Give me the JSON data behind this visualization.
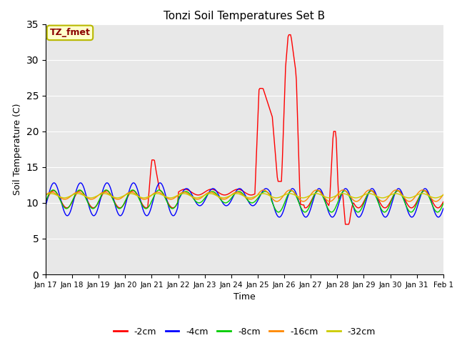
{
  "title": "Tonzi Soil Temperatures Set B",
  "xlabel": "Time",
  "ylabel": "Soil Temperature (C)",
  "ylim": [
    0,
    35
  ],
  "yticks": [
    0,
    5,
    10,
    15,
    20,
    25,
    30,
    35
  ],
  "background_color": "#e8e8e8",
  "annotation_text": "TZ_fmet",
  "annotation_color": "#8b0000",
  "annotation_bg": "#ffffcc",
  "annotation_border": "#b8b800",
  "series": {
    "-2cm": {
      "color": "#ff0000",
      "linewidth": 1.0
    },
    "-4cm": {
      "color": "#0000ff",
      "linewidth": 1.0
    },
    "-8cm": {
      "color": "#00cc00",
      "linewidth": 1.0
    },
    "-16cm": {
      "color": "#ff8800",
      "linewidth": 1.0
    },
    "-32cm": {
      "color": "#cccc00",
      "linewidth": 1.0
    }
  },
  "x_labels": [
    "Jan 17",
    "Jan 18",
    "Jan 19",
    "Jan 20",
    "Jan 21",
    "Jan 22",
    "Jan 23",
    "Jan 24",
    "Jan 25",
    "Jan 26",
    "Jan 27",
    "Jan 28",
    "Jan 29",
    "Jan 30",
    "Jan 31",
    "Feb 1"
  ],
  "n_points": 480
}
